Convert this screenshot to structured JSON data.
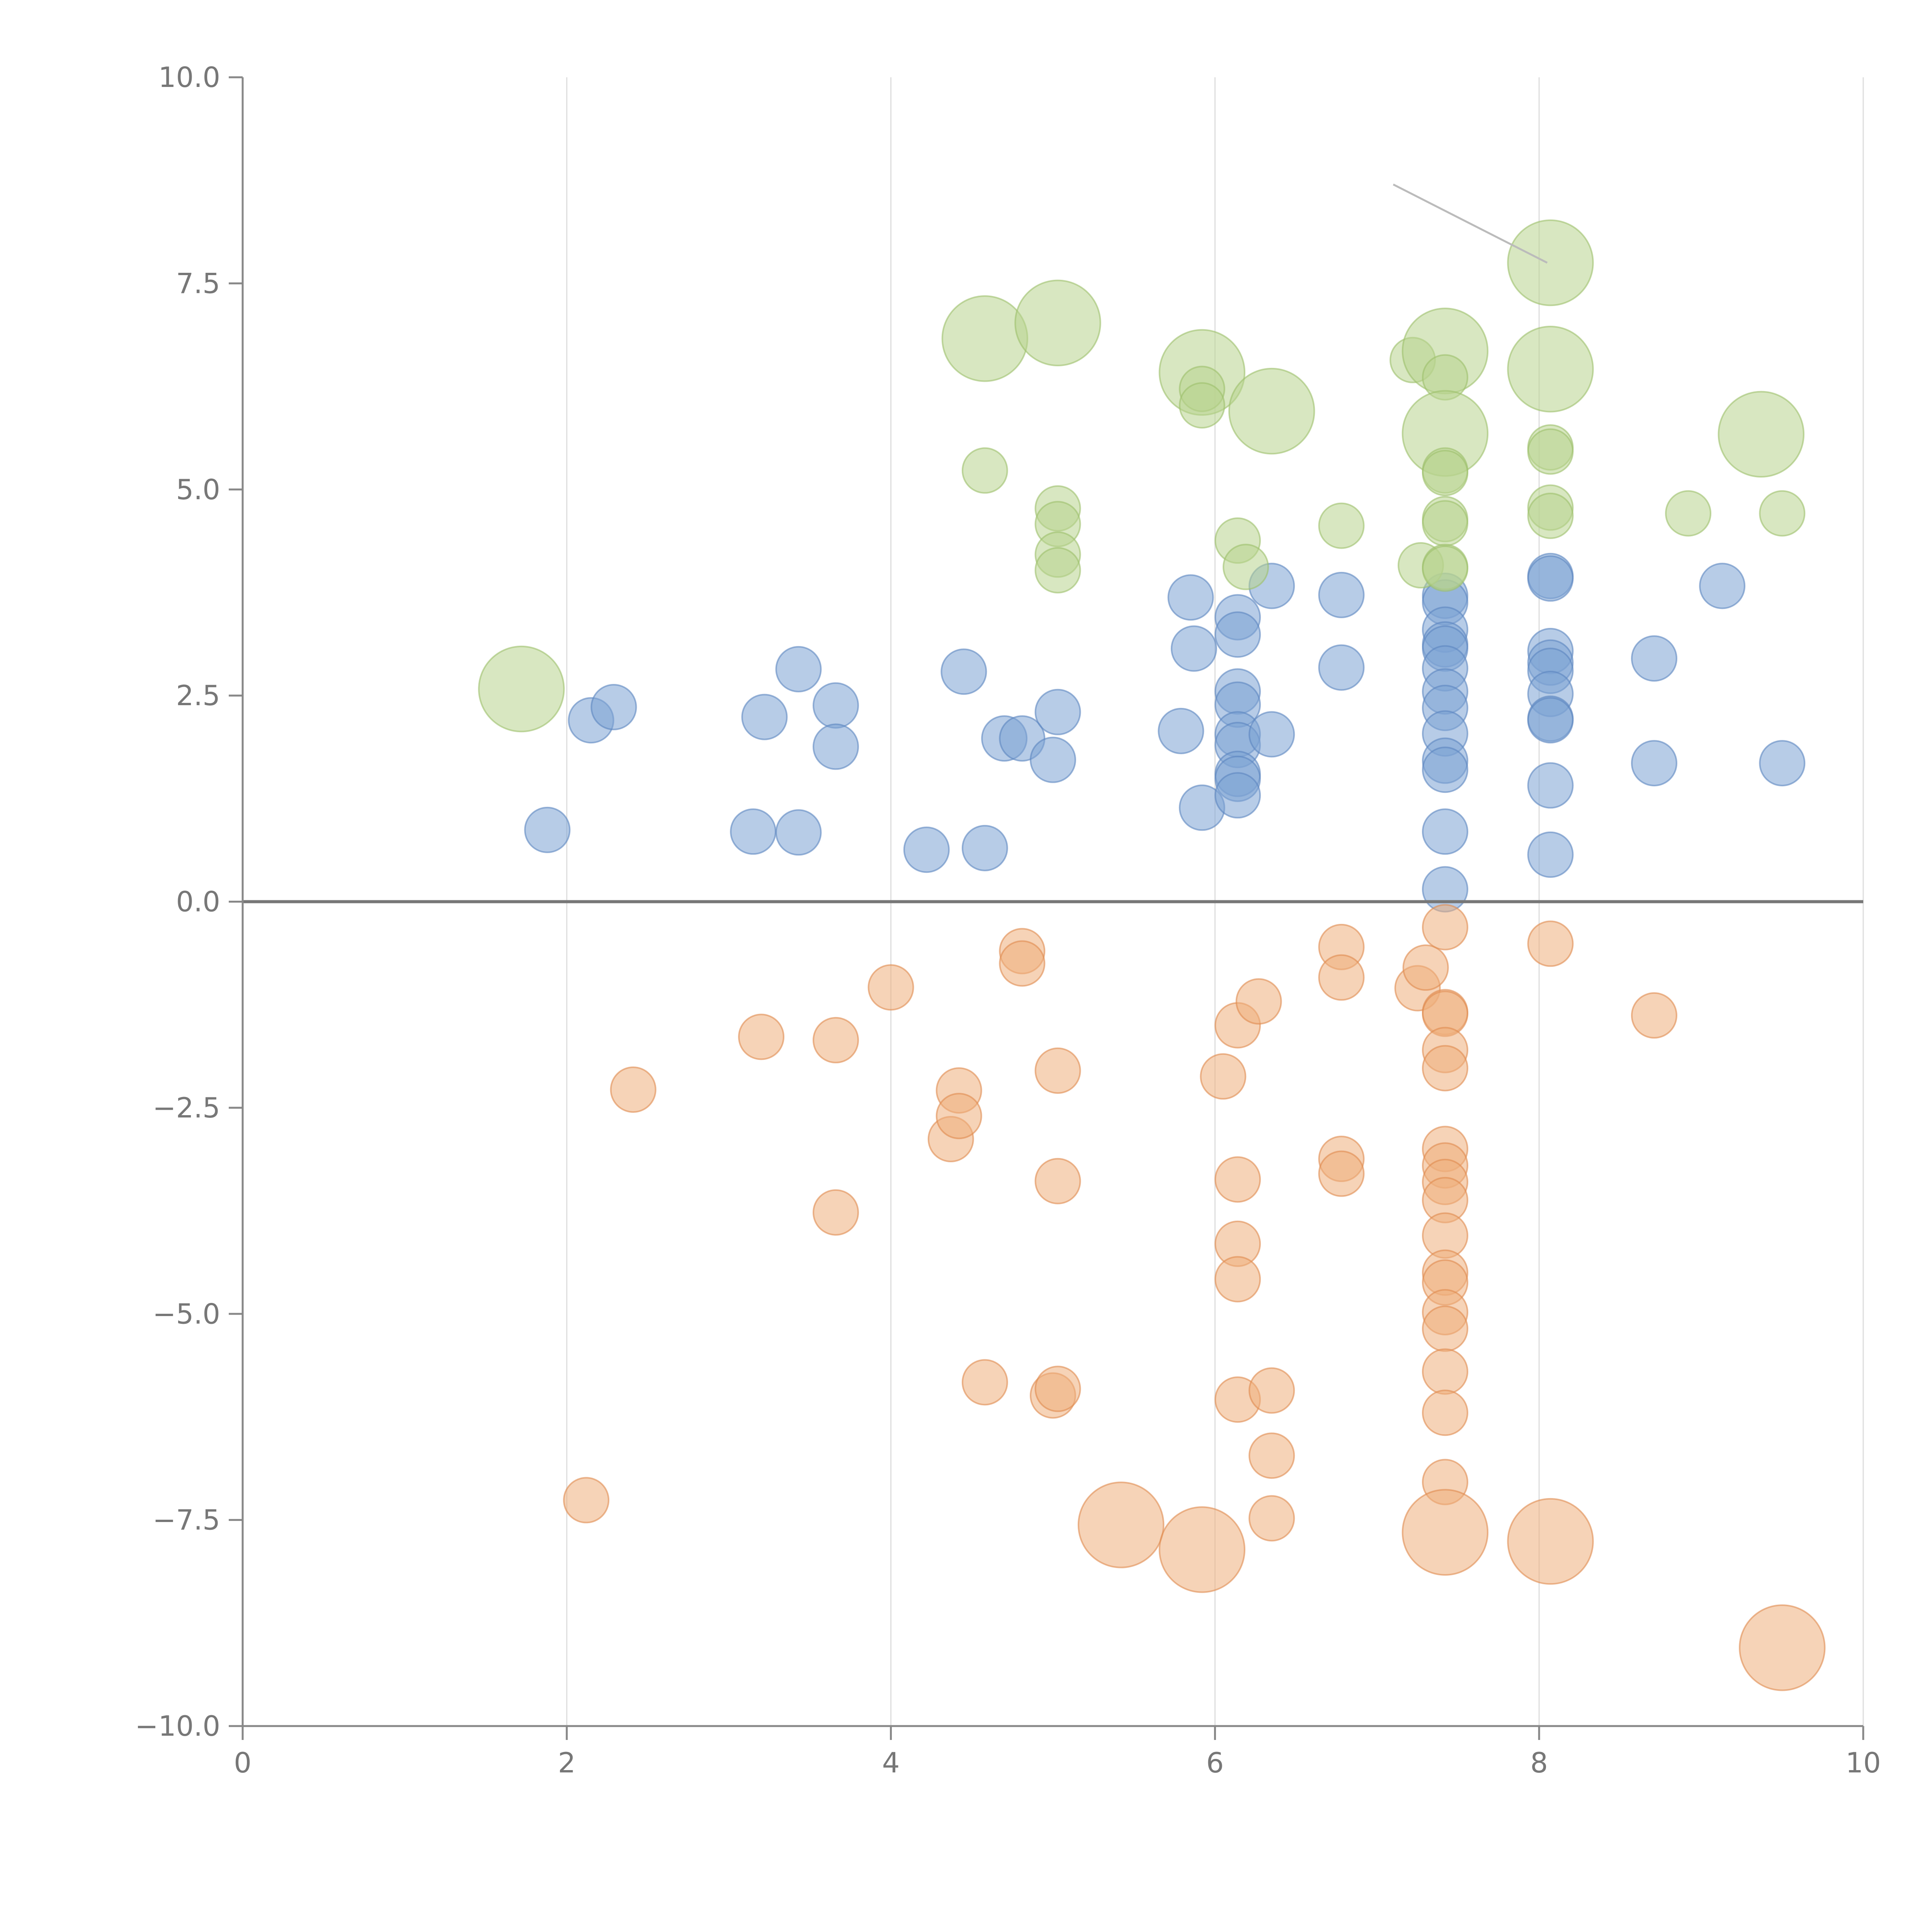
{
  "chart_data": {
    "type": "scatter",
    "title": "",
    "xlabel": "",
    "ylabel": "",
    "xlim": [
      0,
      10
    ],
    "ylim": [
      -10,
      10
    ],
    "x_ticks": [
      0,
      2,
      4,
      6,
      8,
      10
    ],
    "x_tick_labels": [
      "0",
      "2",
      "4",
      "6",
      "8",
      "10"
    ],
    "y_ticks": [
      -10,
      -7.5,
      -5,
      -2.5,
      0,
      2.5,
      5,
      7.5,
      10
    ],
    "y_tick_labels": [
      "−10.0",
      "−7.5",
      "−5.0",
      "−2.5",
      "0.0",
      "2.5",
      "5.0",
      "7.5",
      "10.0"
    ],
    "vertical_grid": true,
    "zero_line": true,
    "colors": {
      "axis": "#888888",
      "grid": "#dddddd",
      "zero_line": "#777777",
      "tick_label": "#777777",
      "callout": "#bbbbbb"
    },
    "callout": {
      "from": [
        7.1,
        8.7
      ],
      "to": [
        8.05,
        7.75
      ]
    },
    "series": [
      {
        "name": "blue",
        "color": "#7ba2d4",
        "stroke": "#5b86c0",
        "points": [
          [
            1.88,
            0.87,
            1
          ],
          [
            2.15,
            2.2,
            1
          ],
          [
            2.29,
            2.36,
            1
          ],
          [
            3.15,
            0.85,
            1
          ],
          [
            3.22,
            2.24,
            1
          ],
          [
            3.43,
            0.84,
            1
          ],
          [
            3.43,
            2.82,
            1
          ],
          [
            3.66,
            2.38,
            1
          ],
          [
            3.66,
            1.88,
            1
          ],
          [
            4.22,
            0.63,
            1
          ],
          [
            4.45,
            2.79,
            1
          ],
          [
            4.58,
            0.65,
            1
          ],
          [
            4.7,
            1.98,
            1
          ],
          [
            4.81,
            1.98,
            1
          ],
          [
            5.0,
            1.72,
            1
          ],
          [
            5.03,
            2.3,
            1
          ],
          [
            5.79,
            2.07,
            1
          ],
          [
            5.85,
            3.69,
            1
          ],
          [
            5.87,
            3.07,
            1
          ],
          [
            5.92,
            1.14,
            1
          ],
          [
            6.14,
            3.45,
            1
          ],
          [
            6.14,
            3.24,
            1
          ],
          [
            6.14,
            2.55,
            1
          ],
          [
            6.14,
            2.39,
            1
          ],
          [
            6.14,
            2.03,
            1
          ],
          [
            6.14,
            1.9,
            1
          ],
          [
            6.14,
            1.55,
            1
          ],
          [
            6.14,
            1.49,
            1
          ],
          [
            6.14,
            1.29,
            1
          ],
          [
            6.35,
            3.83,
            1
          ],
          [
            6.35,
            2.03,
            1
          ],
          [
            6.78,
            3.72,
            1
          ],
          [
            6.78,
            2.84,
            1
          ],
          [
            7.42,
            3.71,
            1
          ],
          [
            7.42,
            3.63,
            1
          ],
          [
            7.42,
            3.3,
            1
          ],
          [
            7.42,
            3.12,
            1
          ],
          [
            7.42,
            3.07,
            1
          ],
          [
            7.42,
            2.83,
            1
          ],
          [
            7.42,
            2.55,
            1
          ],
          [
            7.42,
            2.35,
            1
          ],
          [
            7.42,
            2.04,
            1
          ],
          [
            7.42,
            1.71,
            1
          ],
          [
            7.42,
            1.6,
            1
          ],
          [
            7.42,
            0.85,
            1
          ],
          [
            7.42,
            0.15,
            1
          ],
          [
            8.07,
            3.95,
            1
          ],
          [
            8.07,
            3.92,
            1
          ],
          [
            8.07,
            3.04,
            1
          ],
          [
            8.07,
            2.9,
            1
          ],
          [
            8.07,
            2.8,
            1
          ],
          [
            8.07,
            2.52,
            1
          ],
          [
            8.07,
            2.22,
            1
          ],
          [
            8.07,
            2.2,
            1
          ],
          [
            8.07,
            1.41,
            1
          ],
          [
            8.07,
            0.57,
            1
          ],
          [
            8.71,
            2.95,
            1
          ],
          [
            8.71,
            1.68,
            1
          ],
          [
            9.13,
            3.83,
            1
          ],
          [
            9.5,
            1.68,
            1
          ]
        ]
      },
      {
        "name": "green",
        "color": "#b8d38e",
        "stroke": "#9cc06a",
        "points": [
          [
            1.72,
            2.58,
            1.9
          ],
          [
            4.58,
            6.83,
            1.9
          ],
          [
            4.58,
            5.23,
            1
          ],
          [
            5.03,
            7.02,
            1.9
          ],
          [
            5.03,
            4.77,
            1
          ],
          [
            5.03,
            4.58,
            1
          ],
          [
            5.03,
            4.21,
            1
          ],
          [
            5.03,
            4.02,
            1
          ],
          [
            5.92,
            6.42,
            1.9
          ],
          [
            5.92,
            6.22,
            1
          ],
          [
            5.92,
            6.02,
            1
          ],
          [
            6.14,
            4.38,
            1
          ],
          [
            6.19,
            4.06,
            1
          ],
          [
            6.35,
            5.95,
            1.9
          ],
          [
            6.78,
            4.56,
            1
          ],
          [
            7.22,
            6.57,
            1
          ],
          [
            7.27,
            4.08,
            1
          ],
          [
            7.42,
            6.68,
            1.9
          ],
          [
            7.42,
            6.36,
            1
          ],
          [
            7.42,
            5.68,
            1.9
          ],
          [
            7.42,
            5.23,
            1
          ],
          [
            7.42,
            5.2,
            1
          ],
          [
            7.42,
            4.64,
            1
          ],
          [
            7.42,
            4.59,
            1
          ],
          [
            7.42,
            4.06,
            1
          ],
          [
            7.42,
            4.04,
            1
          ],
          [
            8.07,
            7.75,
            1.9
          ],
          [
            8.07,
            6.46,
            1.9
          ],
          [
            8.07,
            5.51,
            1
          ],
          [
            8.07,
            5.46,
            1
          ],
          [
            8.07,
            4.78,
            1
          ],
          [
            8.07,
            4.68,
            1
          ],
          [
            8.92,
            4.71,
            1
          ],
          [
            9.37,
            5.67,
            1.9
          ],
          [
            9.5,
            4.71,
            1
          ]
        ]
      },
      {
        "name": "orange",
        "color": "#eeae7c",
        "stroke": "#e08a4e",
        "points": [
          [
            2.12,
            -7.26,
            1
          ],
          [
            2.41,
            -2.28,
            1
          ],
          [
            3.2,
            -1.64,
            1
          ],
          [
            3.66,
            -1.68,
            1
          ],
          [
            3.66,
            -3.77,
            1
          ],
          [
            4.0,
            -1.04,
            1
          ],
          [
            4.37,
            -2.88,
            1
          ],
          [
            4.42,
            -2.29,
            1
          ],
          [
            4.42,
            -2.6,
            1
          ],
          [
            4.58,
            -5.83,
            1
          ],
          [
            4.81,
            -0.6,
            1
          ],
          [
            4.81,
            -0.75,
            1
          ],
          [
            5.0,
            -5.99,
            1
          ],
          [
            5.03,
            -2.05,
            1
          ],
          [
            5.03,
            -3.39,
            1
          ],
          [
            5.03,
            -5.91,
            1
          ],
          [
            5.42,
            -7.56,
            1.9
          ],
          [
            5.92,
            -7.86,
            1.9
          ],
          [
            6.05,
            -2.12,
            1
          ],
          [
            6.14,
            -1.5,
            1
          ],
          [
            6.14,
            -3.37,
            1
          ],
          [
            6.14,
            -4.15,
            1
          ],
          [
            6.14,
            -4.58,
            1
          ],
          [
            6.14,
            -6.04,
            1
          ],
          [
            6.27,
            -1.21,
            1
          ],
          [
            6.35,
            -5.93,
            1
          ],
          [
            6.35,
            -6.72,
            1
          ],
          [
            6.35,
            -7.48,
            1
          ],
          [
            6.78,
            -0.55,
            1
          ],
          [
            6.78,
            -0.92,
            1
          ],
          [
            6.78,
            -3.12,
            1
          ],
          [
            6.78,
            -3.3,
            1
          ],
          [
            7.25,
            -1.05,
            1
          ],
          [
            7.3,
            -0.8,
            1
          ],
          [
            7.42,
            -0.31,
            1
          ],
          [
            7.42,
            -1.34,
            1
          ],
          [
            7.42,
            -1.36,
            1
          ],
          [
            7.42,
            -1.8,
            1
          ],
          [
            7.42,
            -2.02,
            1
          ],
          [
            7.42,
            -3.0,
            1
          ],
          [
            7.42,
            -3.2,
            1
          ],
          [
            7.42,
            -3.4,
            1
          ],
          [
            7.42,
            -3.62,
            1
          ],
          [
            7.42,
            -4.05,
            1
          ],
          [
            7.42,
            -4.5,
            1
          ],
          [
            7.42,
            -4.62,
            1
          ],
          [
            7.42,
            -4.98,
            1
          ],
          [
            7.42,
            -5.18,
            1
          ],
          [
            7.42,
            -5.7,
            1
          ],
          [
            7.42,
            -6.2,
            1
          ],
          [
            7.42,
            -7.04,
            1
          ],
          [
            7.42,
            -7.65,
            1.9
          ],
          [
            8.07,
            -0.51,
            1
          ],
          [
            8.07,
            -7.76,
            1.9
          ],
          [
            8.71,
            -1.38,
            1
          ],
          [
            9.5,
            -9.05,
            1.9
          ]
        ]
      }
    ]
  }
}
